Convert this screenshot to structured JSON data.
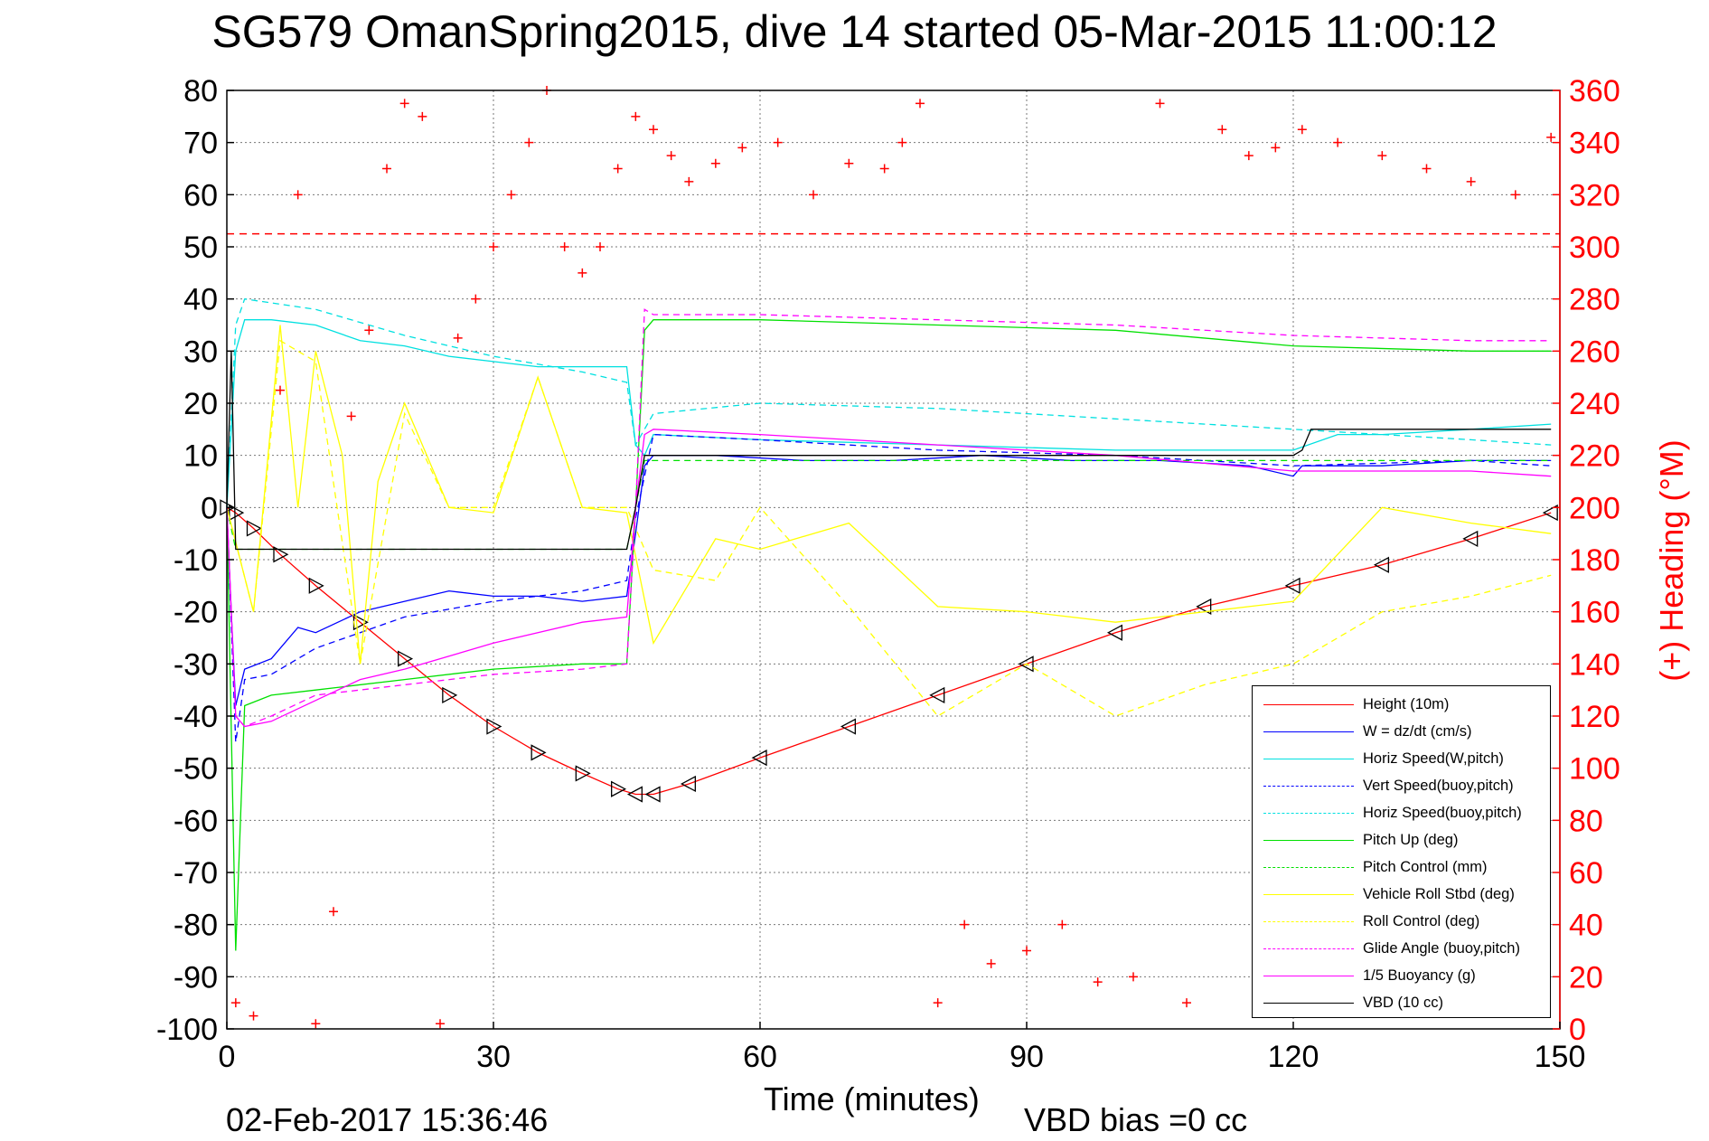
{
  "title": "SG579 OmanSpring2015, dive 14 started 05-Mar-2015 11:00:12",
  "footer": {
    "datestamp": "02-Feb-2017 15:36:46",
    "vbd_bias": "VBD bias =0 cc"
  },
  "chart_data": {
    "type": "line",
    "xlabel": "Time (minutes)",
    "ylabel_left": "",
    "ylabel_right": "(+) Heading (°M)",
    "xlim": [
      0,
      150
    ],
    "ylim_left": [
      -100,
      80
    ],
    "ylim_right": [
      0,
      360
    ],
    "x_ticks": [
      0,
      30,
      60,
      90,
      120,
      150
    ],
    "y_ticks_left": [
      -100,
      -90,
      -80,
      -70,
      -60,
      -50,
      -40,
      -30,
      -20,
      -10,
      0,
      10,
      20,
      30,
      40,
      50,
      60,
      70,
      80
    ],
    "y_ticks_right": [
      0,
      20,
      40,
      60,
      80,
      100,
      120,
      140,
      160,
      180,
      200,
      220,
      240,
      260,
      280,
      300,
      320,
      340,
      360
    ],
    "grid": true,
    "legend_position": "bottom-right",
    "reference_line": {
      "axis": "right",
      "value": 305,
      "color": "#ff0000",
      "style": "dashed"
    },
    "series": [
      {
        "name": "Height (10m)",
        "color": "#ff0000",
        "style": "solid",
        "axis": "left",
        "x": [
          0,
          1,
          3,
          6,
          10,
          15,
          20,
          25,
          30,
          35,
          40,
          44,
          46,
          48,
          52,
          60,
          70,
          80,
          90,
          100,
          110,
          120,
          130,
          140,
          149
        ],
        "y": [
          0,
          -1,
          -4,
          -9,
          -15,
          -22,
          -29,
          -36,
          -42,
          -47,
          -51,
          -54,
          -55,
          -55,
          -53,
          -48,
          -42,
          -36,
          -30,
          -24,
          -19,
          -15,
          -11,
          -6,
          -1
        ]
      },
      {
        "name": "W = dz/dt (cm/s)",
        "color": "#0000ff",
        "style": "solid",
        "axis": "left",
        "x": [
          0,
          0.5,
          1,
          2,
          5,
          8,
          10,
          15,
          20,
          25,
          30,
          35,
          40,
          45,
          46,
          47,
          48,
          55,
          65,
          75,
          85,
          95,
          105,
          115,
          120,
          121,
          130,
          140,
          149
        ],
        "y": [
          0,
          -20,
          -38,
          -31,
          -29,
          -23,
          -24,
          -20,
          -18,
          -16,
          -17,
          -17,
          -18,
          -17,
          -5,
          8,
          10,
          10,
          9,
          9,
          10,
          9,
          9,
          8,
          6,
          8,
          8,
          9,
          9
        ]
      },
      {
        "name": "Horiz Speed(W,pitch)",
        "color": "#00e0e0",
        "style": "solid",
        "axis": "left",
        "x": [
          0,
          1,
          2,
          5,
          10,
          15,
          20,
          25,
          30,
          35,
          40,
          45,
          46,
          47,
          48,
          60,
          80,
          100,
          110,
          120,
          125,
          130,
          140,
          149
        ],
        "y": [
          0,
          30,
          36,
          36,
          35,
          32,
          31,
          29,
          28,
          27,
          27,
          27,
          12,
          10,
          14,
          13,
          12,
          11,
          11,
          11,
          14,
          14,
          15,
          16
        ]
      },
      {
        "name": "Vert Speed(buoy,pitch)",
        "color": "#0000ff",
        "style": "dashed",
        "axis": "left",
        "x": [
          0,
          1,
          2,
          5,
          10,
          20,
          30,
          40,
          45,
          46,
          48,
          60,
          80,
          100,
          120,
          140,
          149
        ],
        "y": [
          0,
          -45,
          -33,
          -32,
          -27,
          -21,
          -18,
          -16,
          -14,
          -2,
          14,
          13,
          11,
          10,
          8,
          9,
          8
        ]
      },
      {
        "name": "Horiz Speed(buoy,pitch)",
        "color": "#00e0e0",
        "style": "dashed",
        "axis": "left",
        "x": [
          0,
          1,
          2,
          10,
          20,
          30,
          40,
          45,
          46,
          48,
          60,
          80,
          100,
          120,
          140,
          149
        ],
        "y": [
          0,
          35,
          40,
          38,
          33,
          29,
          26,
          24,
          12,
          18,
          20,
          19,
          17,
          15,
          13,
          12
        ]
      },
      {
        "name": "Pitch Up (deg)",
        "color": "#00e000",
        "style": "solid",
        "axis": "left",
        "x": [
          0,
          1,
          2,
          5,
          10,
          20,
          30,
          40,
          45,
          46,
          47,
          48,
          60,
          80,
          100,
          120,
          140,
          149
        ],
        "y": [
          0,
          -85,
          -38,
          -36,
          -35,
          -33,
          -31,
          -30,
          -30,
          0,
          34,
          36,
          36,
          35,
          34,
          31,
          30,
          30
        ]
      },
      {
        "name": "Pitch Control (mm)",
        "color": "#00e000",
        "style": "dashed",
        "axis": "left",
        "x": [
          0,
          1,
          3,
          45,
          46,
          47,
          149
        ],
        "y": [
          0,
          -8,
          -8,
          -8,
          0,
          9,
          9
        ]
      },
      {
        "name": "Vehicle Roll Stbd (deg)",
        "color": "#ffff00",
        "style": "solid",
        "axis": "left",
        "x": [
          0,
          3,
          6,
          8,
          10,
          13,
          15,
          17,
          20,
          25,
          30,
          35,
          40,
          45,
          48,
          55,
          60,
          70,
          80,
          90,
          100,
          110,
          120,
          130,
          140,
          149
        ],
        "y": [
          0,
          -20,
          35,
          0,
          30,
          10,
          -30,
          5,
          20,
          0,
          -1,
          25,
          0,
          -1,
          -26,
          -6,
          -8,
          -3,
          -19,
          -20,
          -22,
          -20,
          -18,
          0,
          -3,
          -5
        ]
      },
      {
        "name": "Roll Control (deg)",
        "color": "#ffff00",
        "style": "dashed",
        "axis": "left",
        "x": [
          0,
          3,
          6,
          10,
          15,
          20,
          25,
          30,
          35,
          40,
          45,
          48,
          55,
          60,
          70,
          80,
          90,
          100,
          110,
          120,
          130,
          140,
          149
        ],
        "y": [
          0,
          -20,
          32,
          28,
          -30,
          18,
          0,
          0,
          25,
          0,
          0,
          -12,
          -14,
          0,
          -19,
          -40,
          -30,
          -40,
          -34,
          -30,
          -20,
          -17,
          -13
        ]
      },
      {
        "name": "Glide Angle (buoy,pitch)",
        "color": "#ff00ff",
        "style": "dashed",
        "axis": "left",
        "x": [
          0,
          1,
          2,
          5,
          10,
          20,
          30,
          40,
          45,
          46,
          47,
          48,
          60,
          80,
          100,
          120,
          140,
          149
        ],
        "y": [
          0,
          -40,
          -42,
          -40,
          -36,
          -34,
          -32,
          -31,
          -30,
          0,
          38,
          37,
          37,
          36,
          35,
          33,
          32,
          32
        ]
      },
      {
        "name": "1/5 Buoyancy (g)",
        "color": "#ff00ff",
        "style": "solid",
        "axis": "left",
        "x": [
          0,
          1,
          2,
          5,
          10,
          15,
          20,
          30,
          40,
          45,
          46,
          47,
          48,
          60,
          80,
          100,
          120,
          140,
          149
        ],
        "y": [
          0,
          -40,
          -42,
          -41,
          -37,
          -33,
          -31,
          -26,
          -22,
          -21,
          0,
          14,
          15,
          14,
          12,
          10,
          7,
          7,
          6
        ]
      },
      {
        "name": "VBD (10 cc)",
        "color": "#000000",
        "style": "solid",
        "axis": "left",
        "x": [
          0,
          0.5,
          1,
          2,
          45,
          46,
          47,
          48,
          120,
          121,
          122,
          130,
          149
        ],
        "y": [
          0,
          30,
          -8,
          -8,
          -8,
          0,
          10,
          10,
          10,
          11,
          15,
          15,
          15
        ]
      },
      {
        "name": "Heading",
        "color": "#ff0000",
        "style": "markers",
        "marker": "+",
        "axis": "right",
        "x": [
          1,
          3,
          6,
          8,
          10,
          12,
          14,
          16,
          18,
          20,
          22,
          24,
          26,
          28,
          30,
          32,
          34,
          36,
          38,
          40,
          42,
          44,
          46,
          48,
          50,
          52,
          55,
          58,
          62,
          66,
          70,
          74,
          76,
          78,
          80,
          83,
          86,
          90,
          94,
          98,
          102,
          105,
          108,
          112,
          115,
          118,
          121,
          125,
          130,
          135,
          140,
          145,
          149
        ],
        "y": [
          10,
          5,
          245,
          320,
          2,
          45,
          235,
          268,
          330,
          355,
          350,
          2,
          265,
          280,
          300,
          320,
          340,
          360,
          300,
          290,
          300,
          330,
          350,
          345,
          335,
          325,
          332,
          338,
          340,
          320,
          332,
          330,
          340,
          355,
          10,
          40,
          25,
          30,
          40,
          18,
          20,
          355,
          10,
          345,
          335,
          338,
          345,
          340,
          335,
          330,
          325,
          320,
          342
        ]
      }
    ]
  }
}
